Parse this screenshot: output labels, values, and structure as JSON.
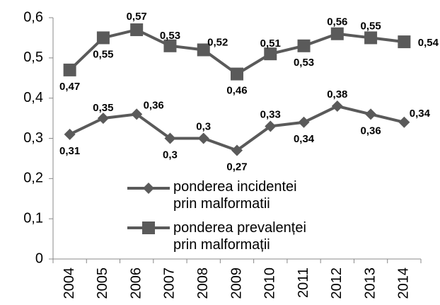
{
  "chart_data": {
    "type": "line",
    "categories": [
      "2004",
      "2005",
      "2006",
      "2007",
      "2008",
      "2009",
      "2010",
      "2011",
      "2012",
      "2013",
      "2014"
    ],
    "series": [
      {
        "name": "ponderea incidentei prin malformatii",
        "color": "#5a5a5a",
        "marker": "diamond",
        "values": [
          0.31,
          0.35,
          0.36,
          0.3,
          0.3,
          0.27,
          0.33,
          0.34,
          0.38,
          0.36,
          0.34
        ],
        "value_labels": [
          "0,31",
          "0,35",
          "0,36",
          "0,3",
          "0,3",
          "0,27",
          "0,33",
          "0,34",
          "0,38",
          "0,36",
          "0,34"
        ]
      },
      {
        "name": "ponderea prevalenței prin malformații",
        "color": "#5a5a5a",
        "marker": "square",
        "values": [
          0.47,
          0.55,
          0.57,
          0.53,
          0.52,
          0.46,
          0.51,
          0.53,
          0.56,
          0.55,
          0.54
        ],
        "value_labels": [
          "0,47",
          "0,55",
          "0,57",
          "0,53",
          "0,52",
          "0,46",
          "0,51",
          "0,53",
          "0,56",
          "0,55",
          "0,54"
        ]
      }
    ],
    "ylim": [
      0,
      0.6
    ],
    "yticks": [
      0,
      {
        "value": 0.1,
        "label": "0,1"
      },
      {
        "value": 0.2,
        "label": "0,2"
      },
      {
        "value": 0.3,
        "label": "0,3"
      },
      {
        "value": 0.4,
        "label": "0,4"
      },
      {
        "value": 0.5,
        "label": "0,5"
      },
      {
        "value": 0.6,
        "label": "0,6"
      }
    ],
    "grid": false
  }
}
